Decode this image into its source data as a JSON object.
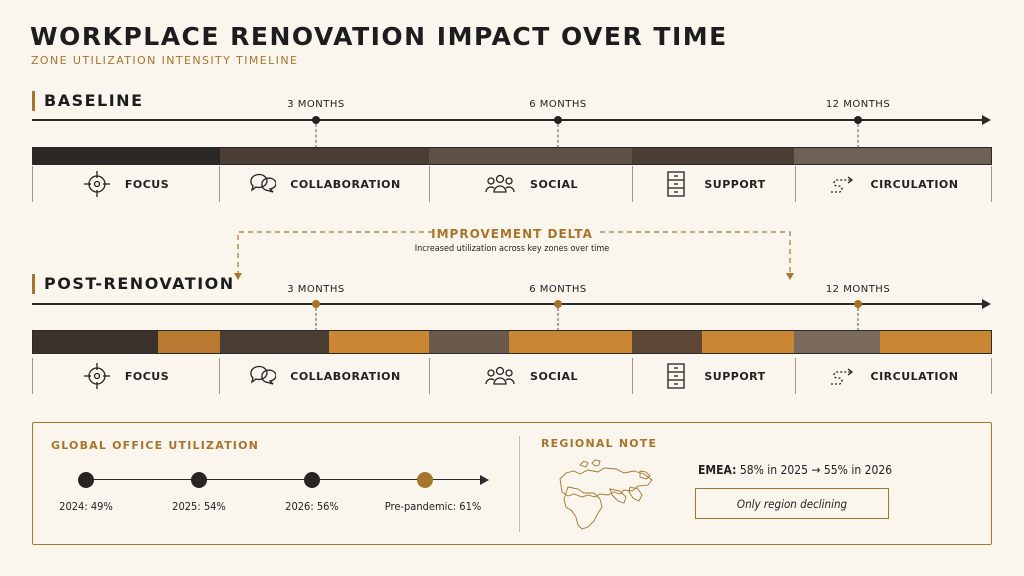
{
  "title": "WORKPLACE RENOVATION IMPACT OVER TIME",
  "subtitle": "ZONE UTILIZATION INTENSITY TIMELINE",
  "baseline": {
    "label": "BASELINE",
    "ticks": [
      "3 MONTHS",
      "6 MONTHS",
      "12 MONTHS"
    ]
  },
  "post": {
    "label": "POST-RENOVATION",
    "ticks": [
      "3 MONTHS",
      "6 MONTHS",
      "12 MONTHS"
    ]
  },
  "zones": [
    {
      "label": "FOCUS",
      "icon": "crosshair-icon"
    },
    {
      "label": "COLLABORATION",
      "icon": "chat-bubbles-icon"
    },
    {
      "label": "SOCIAL",
      "icon": "people-group-icon"
    },
    {
      "label": "SUPPORT",
      "icon": "filing-cabinet-icon"
    },
    {
      "label": "CIRCULATION",
      "icon": "path-arrow-icon"
    }
  ],
  "delta": {
    "title": "IMPROVEMENT DELTA",
    "subtitle": "Increased utilization across key zones over time"
  },
  "global": {
    "title": "GLOBAL OFFICE UTILIZATION",
    "points": [
      {
        "label": "2024: 49%",
        "value": 49
      },
      {
        "label": "2025: 54%",
        "value": 54
      },
      {
        "label": "2026: 56%",
        "value": 56
      },
      {
        "label": "Pre-pandemic: 61%",
        "value": 61
      }
    ]
  },
  "regional": {
    "title": "REGIONAL NOTE",
    "emea_prefix": "EMEA:",
    "emea_text": " 58% in 2025 → 55% in 2026",
    "note": "Only region declining"
  },
  "colors": {
    "accent": "#a8742c",
    "dark": "#2a2522",
    "gold": "#c68a34"
  }
}
